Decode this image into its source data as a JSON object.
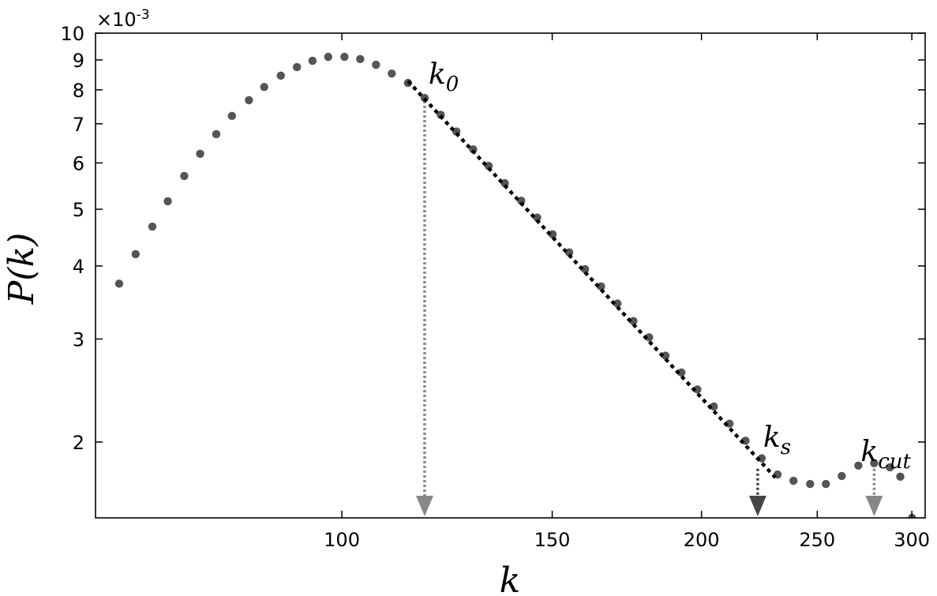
{
  "chart_data": {
    "type": "scatter",
    "x_label": "k",
    "y_label": "P(k)",
    "y_offset_label": "×10",
    "y_offset_exponent": "-3",
    "xscale": "log",
    "yscale": "log",
    "xlim": [
      62.2,
      307.8
    ],
    "ylim": [
      1.484,
      10
    ],
    "xticks": [
      100,
      150,
      200,
      250,
      300
    ],
    "yticks": [
      2,
      3,
      4,
      5,
      6,
      7,
      8,
      9,
      10
    ],
    "series": [
      {
        "color": "#555555",
        "x": [
          65.1,
          67.2,
          69.4,
          71.5,
          73.8,
          76.1,
          78.5,
          80.9,
          83.6,
          86.1,
          88.9,
          91.7,
          94.5,
          97.4,
          100.5,
          103.6,
          106.8,
          110.1,
          113.6,
          117.3,
          121.0,
          124.7,
          128.8,
          132.7,
          136.9,
          141.3,
          145.7,
          150.1,
          155.0,
          159.8,
          164.8,
          170.1,
          175.4,
          180.8,
          186.6,
          192.4,
          198.4,
          204.8,
          211.1,
          217.7,
          224.6,
          231.6,
          238.8,
          246.6,
          254.2,
          262.1,
          270.6,
          279.0,
          287.6,
          293.4,
          300.1
        ],
        "values": [
          3.73,
          4.19,
          4.67,
          5.16,
          5.7,
          6.22,
          6.72,
          7.22,
          7.68,
          8.09,
          8.46,
          8.75,
          8.97,
          9.11,
          9.11,
          9.03,
          8.83,
          8.53,
          8.22,
          7.75,
          7.25,
          6.79,
          6.33,
          5.93,
          5.54,
          5.17,
          4.84,
          4.53,
          4.22,
          3.95,
          3.69,
          3.45,
          3.22,
          3.02,
          2.81,
          2.63,
          2.46,
          2.3,
          2.15,
          2.01,
          1.876,
          1.76,
          1.717,
          1.696,
          1.696,
          1.75,
          1.823,
          1.84,
          1.811,
          1.745,
          1.484
        ]
      },
      {
        "color": "#000000",
        "line": "dashed",
        "x": [
          113.6,
          230.6
        ],
        "values": [
          8.28,
          1.739
        ]
      }
    ],
    "annotations": [
      {
        "text": "k",
        "subscript": "0",
        "x": 117.3,
        "y": 7.75,
        "color": "#888888"
      },
      {
        "text": "k",
        "subscript": "s",
        "x": 222.9,
        "y": 1.823,
        "color": "#444444"
      },
      {
        "text": "k",
        "subscript": "cut",
        "x": 279.0,
        "y": 1.823,
        "color": "#888888"
      }
    ]
  }
}
